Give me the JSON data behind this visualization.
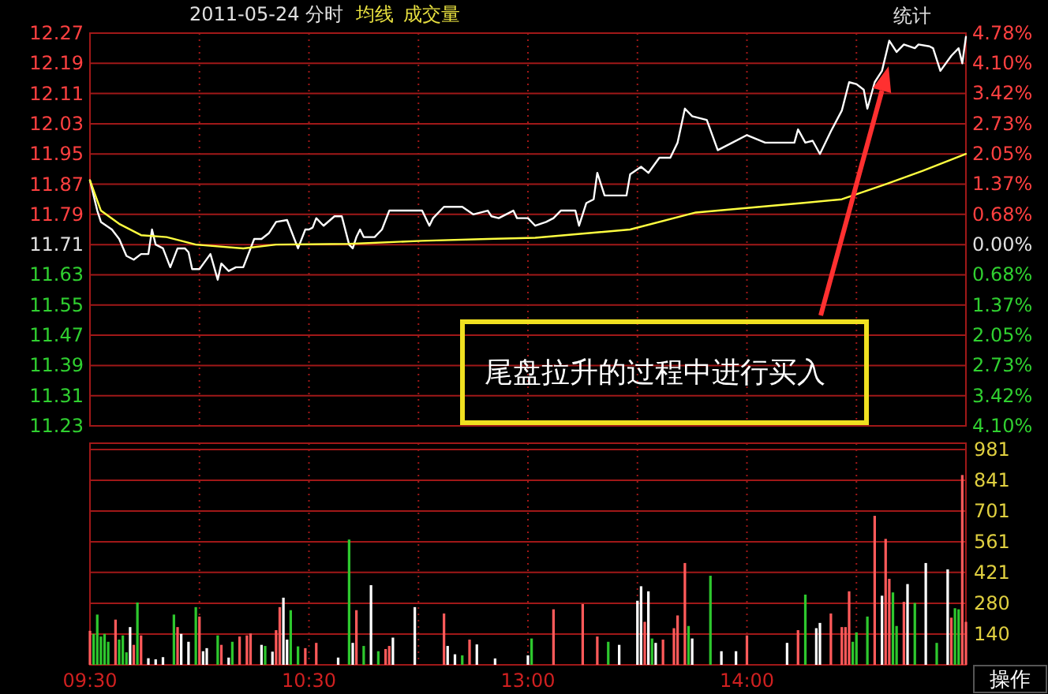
{
  "chart_data": [
    {
      "type": "line",
      "title": "2011-05-24 分时",
      "legend": "top left",
      "categories": [
        null,
        null,
        null,
        null,
        null,
        null,
        null,
        null,
        null,
        null,
        null,
        null,
        null,
        null,
        null,
        null,
        null,
        null,
        null,
        null,
        null,
        null,
        null,
        null,
        null,
        null,
        null,
        null,
        null,
        null,
        null,
        null,
        null,
        null,
        null,
        null,
        null,
        null,
        null,
        null,
        null,
        null,
        null,
        null,
        null,
        null,
        null,
        null,
        null,
        null,
        null,
        null,
        null,
        null,
        null,
        null,
        null,
        null,
        null,
        null,
        null,
        null,
        null,
        null,
        null,
        null,
        null,
        null,
        null,
        null,
        null,
        null,
        null,
        null,
        null,
        null,
        null,
        null,
        null,
        null,
        null,
        null,
        null,
        null,
        null,
        null,
        null,
        null,
        null,
        null,
        null,
        null,
        null,
        null,
        null,
        null,
        null,
        null,
        null,
        null,
        null,
        null,
        null,
        null,
        null,
        null,
        null,
        null,
        null,
        null,
        null,
        null,
        null,
        null,
        null,
        null,
        null,
        null,
        null,
        null,
        null,
        null,
        null,
        null,
        null,
        null,
        null,
        null,
        null,
        null,
        null,
        null,
        null,
        null,
        null,
        null,
        null,
        null,
        null,
        null,
        null,
        null,
        null,
        null,
        null,
        null,
        null,
        null,
        null,
        null,
        null,
        null,
        null,
        null,
        null,
        null,
        null,
        null,
        null,
        null,
        null,
        null,
        null,
        null,
        null,
        null,
        null,
        null,
        null,
        null,
        null,
        null,
        null,
        null,
        null,
        null,
        null,
        null,
        null,
        null,
        null,
        null,
        null,
        null,
        null,
        null,
        null,
        null,
        null,
        null,
        null,
        null,
        null,
        null,
        null,
        null,
        null,
        null,
        null,
        null,
        null,
        null,
        null,
        null,
        null,
        null,
        null,
        null,
        null,
        null,
        null,
        null,
        null,
        null,
        null,
        null,
        null,
        null,
        null,
        null,
        null,
        null,
        null,
        null,
        null,
        null,
        null,
        null,
        null,
        null,
        null,
        null,
        null,
        null,
        null,
        null,
        null,
        null,
        null,
        null,
        null
      ],
      "ylim": [
        11.23,
        12.27
      ],
      "yticks": [
        12.27,
        12.19,
        12.11,
        12.03,
        11.95,
        11.87,
        11.79,
        11.71,
        11.63,
        11.55,
        11.47,
        11.39,
        11.31,
        11.23
      ],
      "y2lim": [
        -4.1,
        4.78
      ],
      "y2ticks": [
        {
          "value": 4.78,
          "label": "4.78%"
        },
        {
          "value": 4.1,
          "label": "4.10%"
        },
        {
          "value": 3.42,
          "label": "3.42%"
        },
        {
          "value": 2.73,
          "label": "2.73%"
        },
        {
          "value": 2.05,
          "label": "2.05%"
        },
        {
          "value": 1.37,
          "label": "1.37%"
        },
        {
          "value": 0.68,
          "label": "0.68%"
        },
        {
          "value": 0,
          "label": "0.00%"
        },
        {
          "value": -0.68,
          "label": "0.68%"
        },
        {
          "value": -1.37,
          "label": "1.37%"
        },
        {
          "value": -2.05,
          "label": "2.05%"
        },
        {
          "value": -2.73,
          "label": "2.73%"
        },
        {
          "value": -3.42,
          "label": "3.42%"
        },
        {
          "value": -4.1,
          "label": "4.10%"
        }
      ],
      "tick_labels": "y",
      "grid": true,
      "series": [
        {
          "color": "#ffffff",
          "values": [
            11.88,
            null,
            11.8,
            11.77,
            null,
            null,
            11.75,
            null,
            11.725,
            null,
            11.68,
            null,
            11.67,
            null,
            11.685,
            null,
            11.685,
            11.75,
            11.71,
            null,
            11.7,
            null,
            11.65,
            null,
            11.7,
            null,
            11.7,
            11.69,
            11.645,
            null,
            11.645,
            null,
            null,
            11.685,
            null,
            11.617,
            11.66,
            null,
            11.64,
            null,
            11.65,
            null,
            11.65,
            null,
            null,
            11.725,
            null,
            11.725,
            null,
            11.74,
            null,
            11.77,
            null,
            null,
            11.775,
            11.75,
            null,
            11.7,
            null,
            11.75,
            11.75,
            11.755,
            11.78,
            null,
            11.76,
            null,
            null,
            11.785,
            null,
            11.785,
            null,
            11.71,
            11.7,
            11.73,
            11.75,
            11.73,
            null,
            null,
            11.73,
            null,
            11.75,
            null,
            11.8,
            null,
            null,
            null,
            null,
            null,
            null,
            null,
            null,
            11.8,
            null,
            11.76,
            11.78,
            null,
            null,
            11.81,
            null,
            null,
            null,
            null,
            11.81,
            null,
            null,
            11.79,
            null,
            null,
            null,
            11.8,
            11.785,
            null,
            11.78,
            null,
            null,
            null,
            11.8,
            11.78,
            null,
            null,
            11.78,
            null,
            11.76,
            null,
            null,
            11.77,
            null,
            11.78,
            null,
            11.8,
            null,
            null,
            null,
            11.8,
            11.76,
            null,
            11.82,
            null,
            11.83,
            11.9,
            null,
            11.84,
            null,
            null,
            null,
            null,
            null,
            11.84,
            11.896,
            null,
            null,
            11.916,
            null,
            11.9,
            null,
            null,
            11.94,
            null,
            null,
            11.94,
            null,
            11.98,
            null,
            12.07,
            null,
            12.05,
            null,
            null,
            null,
            12.04,
            null,
            null,
            11.96,
            null,
            null,
            null,
            11.98,
            null,
            null,
            null,
            12.0,
            null,
            null,
            null,
            null,
            11.98,
            null,
            null,
            11.98,
            null,
            null,
            null,
            null,
            11.98,
            12.015,
            null,
            11.98,
            null,
            11.985,
            null,
            11.95,
            null,
            null,
            12.01,
            null,
            null,
            12.065,
            null,
            12.14,
            null,
            12.135,
            null,
            12.12,
            12.07,
            null,
            12.14,
            null,
            12.17,
            null,
            12.25,
            null,
            12.22,
            null,
            12.24,
            null,
            null,
            12.23,
            12.24,
            null,
            null,
            12.235,
            12.23,
            null,
            12.17,
            null,
            null,
            12.21,
            null,
            12.23,
            12.19,
            12.26
          ]
        },
        {
          "name": "均线",
          "color": "#ffff40",
          "values": [
            11.88,
            null,
            null,
            11.8,
            null,
            null,
            null,
            null,
            11.765,
            null,
            null,
            null,
            null,
            null,
            11.735,
            null,
            null,
            null,
            null,
            null,
            null,
            11.73,
            null,
            null,
            null,
            null,
            null,
            null,
            null,
            11.71,
            null,
            null,
            null,
            null,
            null,
            null,
            null,
            null,
            null,
            null,
            null,
            null,
            11.7,
            null,
            null,
            null,
            null,
            null,
            null,
            null,
            null,
            11.71,
            null,
            null,
            null,
            null,
            null,
            null,
            null,
            null,
            null,
            null,
            null,
            null,
            null,
            null,
            null,
            null,
            null,
            null,
            null,
            11.712,
            null,
            null,
            null,
            null,
            null,
            null,
            null,
            null,
            null,
            null,
            null,
            null,
            null,
            null,
            null,
            null,
            null,
            null,
            null,
            11.72,
            null,
            null,
            null,
            null,
            null,
            null,
            null,
            null,
            null,
            null,
            null,
            null,
            null,
            null,
            null,
            null,
            null,
            11.725,
            null,
            null,
            null,
            null,
            null,
            null,
            null,
            null,
            null,
            null,
            null,
            null,
            11.728,
            null,
            null,
            null,
            null,
            null,
            null,
            null,
            null,
            null,
            null,
            null,
            null,
            null,
            null,
            null,
            null,
            null,
            null,
            null,
            null,
            null,
            null,
            null,
            null,
            null,
            11.75,
            null,
            null,
            null,
            null,
            null,
            null,
            null,
            null,
            null,
            null,
            null,
            null,
            null,
            null,
            null,
            null,
            null,
            11.795,
            null,
            null,
            null,
            null,
            null,
            null,
            null,
            null,
            null,
            null,
            null,
            null,
            null,
            null,
            null,
            null,
            null,
            null,
            null,
            null,
            null,
            null,
            null,
            null,
            null,
            null,
            null,
            null,
            11.82,
            null,
            null,
            null,
            null,
            null,
            null,
            null,
            null,
            null,
            null,
            11.83,
            null,
            null,
            null,
            null,
            null,
            null,
            null,
            null,
            null,
            null,
            null,
            11.87,
            null,
            null,
            null,
            null,
            null,
            null,
            null,
            null,
            null,
            11.905,
            null,
            null,
            null,
            null,
            null,
            null,
            null,
            null,
            null,
            null,
            null,
            11.95
          ]
        }
      ],
      "annotations": [
        "尾盘拉升的过程中进行买入",
        "统计"
      ]
    },
    {
      "type": "bar",
      "legend": "top left",
      "categories": [
        "09:30",
        null,
        null,
        null,
        null,
        null,
        null,
        null,
        null,
        null,
        null,
        null,
        null,
        null,
        null,
        null,
        null,
        null,
        null,
        null,
        null,
        null,
        null,
        null,
        null,
        null,
        null,
        null,
        null,
        null,
        null,
        null,
        null,
        null,
        null,
        null,
        null,
        null,
        null,
        null,
        null,
        null,
        null,
        null,
        null,
        null,
        null,
        null,
        null,
        null,
        null,
        null,
        null,
        null,
        null,
        null,
        null,
        null,
        null,
        null,
        "10:30",
        null,
        null,
        null,
        null,
        null,
        null,
        null,
        null,
        null,
        null,
        null,
        null,
        null,
        null,
        null,
        null,
        null,
        null,
        null,
        null,
        null,
        null,
        null,
        null,
        null,
        null,
        null,
        null,
        null,
        null,
        null,
        null,
        null,
        null,
        null,
        null,
        null,
        null,
        null,
        null,
        null,
        null,
        null,
        null,
        null,
        null,
        null,
        null,
        null,
        null,
        null,
        null,
        null,
        null,
        null,
        null,
        null,
        null,
        null,
        "13:00",
        null,
        null,
        null,
        null,
        null,
        null,
        null,
        null,
        null,
        null,
        null,
        null,
        null,
        null,
        null,
        null,
        null,
        null,
        null,
        null,
        null,
        null,
        null,
        null,
        null,
        null,
        null,
        null,
        null,
        null,
        null,
        null,
        null,
        null,
        null,
        null,
        null,
        null,
        null,
        null,
        null,
        null,
        null,
        null,
        null,
        null,
        null,
        null,
        null,
        null,
        null,
        null,
        null,
        null,
        null,
        null,
        null,
        null,
        null,
        "14:00",
        null,
        null,
        null,
        null,
        null,
        null,
        null,
        null,
        null,
        null,
        null,
        null,
        null,
        null,
        null,
        null,
        null,
        null,
        null,
        null,
        null,
        null,
        null,
        null,
        null,
        null,
        null,
        null,
        null,
        null,
        null,
        null,
        null,
        null,
        null,
        null,
        null,
        null,
        null,
        null,
        null,
        null,
        null,
        null,
        null,
        null,
        null,
        null,
        null,
        null,
        null,
        null,
        null,
        null,
        null,
        null,
        null,
        null,
        null,
        null
      ],
      "ylim": [
        0,
        1010
      ],
      "yticks": [
        140,
        280,
        421,
        561,
        701,
        841,
        981
      ],
      "grid": true,
      "series": [
        {
          "name": "成交量",
          "values": [
            155,
            141,
            229,
            129,
            141,
            105,
            null,
            206,
            115,
            134,
            57,
            172,
            91,
            284,
            134,
            null,
            30,
            null,
            25,
            null,
            35,
            null,
            null,
            229,
            172,
            141,
            null,
            105,
            null,
            263,
            220,
            62,
            76,
            null,
            null,
            134,
            91,
            null,
            33,
            105,
            null,
            129,
            null,
            134,
            143,
            null,
            null,
            91,
            86,
            null,
            60,
            158,
            263,
            306,
            115,
            249,
            null,
            84,
            null,
            76,
            null,
            null,
            100,
            null,
            null,
            null,
            null,
            null,
            33,
            null,
            null,
            571,
            100,
            249,
            null,
            86,
            null,
            363,
            null,
            62,
            null,
            72,
            86,
            124,
            null,
            null,
            null,
            null,
            null,
            263,
            null,
            null,
            null,
            null,
            null,
            null,
            null,
            234,
            86,
            null,
            48,
            null,
            43,
            null,
            115,
            null,
            93,
            null,
            null,
            null,
            null,
            29,
            null,
            null,
            null,
            null,
            null,
            null,
            null,
            null,
            43,
            120,
            null,
            null,
            null,
            null,
            null,
            253,
            null,
            null,
            null,
            null,
            null,
            null,
            null,
            277,
            null,
            null,
            null,
            129,
            null,
            null,
            105,
            null,
            null,
            91,
            null,
            null,
            null,
            null,
            292,
            358,
            196,
            335,
            120,
            100,
            null,
            115,
            null,
            null,
            167,
            225,
            null,
            464,
            177,
            120,
            null,
            null,
            null,
            null,
            406,
            null,
            null,
            62,
            null,
            null,
            null,
            62,
            null,
            null,
            134,
            null,
            null,
            null,
            null,
            null,
            null,
            null,
            null,
            null,
            null,
            100,
            null,
            null,
            158,
            null,
            320,
            null,
            null,
            167,
            191,
            null,
            null,
            234,
            null,
            null,
            172,
            172,
            335,
            105,
            148,
            null,
            null,
            220,
            null,
            679,
            null,
            315,
            574,
            392,
            330,
            177,
            null,
            287,
            368,
            null,
            282,
            null,
            null,
            464,
            null,
            null,
            100,
            null,
            null,
            435,
            215,
            258,
            253,
            865,
            196
          ],
          "colors": [
            "#ff5a5a",
            "#2ec82e",
            "#2ec82e",
            "#2ec82e",
            "#2ec82e",
            "#2ec82e",
            null,
            "#ff5a5a",
            "#2ec82e",
            "#2ec82e",
            "#2ec82e",
            "#ffffff",
            "#ff5a5a",
            "#2ec82e",
            "#ff5a5a",
            null,
            "#ffffff",
            null,
            "#ffffff",
            null,
            "#ffffff",
            null,
            null,
            "#2ec82e",
            "#ff5a5a",
            "#ffffff",
            null,
            "#ffffff",
            null,
            "#2ec82e",
            "#ff5a5a",
            "#ffffff",
            "#ffffff",
            null,
            null,
            "#2ec82e",
            "#ff5a5a",
            null,
            "#ffffff",
            "#2ec82e",
            null,
            "#ff5a5a",
            null,
            "#ff5a5a",
            "#ff5a5a",
            null,
            null,
            "#ffffff",
            "#2ec82e",
            null,
            "#ffffff",
            "#ff5a5a",
            "#ff5a5a",
            "#ffffff",
            "#ffffff",
            "#2ec82e",
            null,
            "#2ec82e",
            null,
            "#ff5a5a",
            null,
            null,
            "#ff5a5a",
            null,
            null,
            null,
            null,
            null,
            "#ffffff",
            null,
            null,
            "#2ec82e",
            "#ffffff",
            "#ff5a5a",
            null,
            "#2ec82e",
            null,
            "#ffffff",
            null,
            "#2ec82e",
            null,
            "#ff5a5a",
            "#ff5a5a",
            "#ffffff",
            null,
            null,
            null,
            null,
            null,
            "#ffffff",
            null,
            null,
            null,
            null,
            null,
            null,
            null,
            "#ff5a5a",
            "#ffffff",
            null,
            "#ffffff",
            null,
            "#2ec82e",
            null,
            "#ff5a5a",
            null,
            "#ffffff",
            null,
            null,
            null,
            null,
            "#ffffff",
            null,
            null,
            null,
            null,
            null,
            null,
            null,
            null,
            "#ffffff",
            "#2ec82e",
            null,
            null,
            null,
            null,
            null,
            "#ff5a5a",
            null,
            null,
            null,
            null,
            null,
            null,
            null,
            "#ff5a5a",
            null,
            null,
            null,
            "#ff5a5a",
            null,
            null,
            "#2ec82e",
            null,
            null,
            "#ffffff",
            null,
            null,
            null,
            null,
            "#ffffff",
            "#ffffff",
            "#ff5a5a",
            "#ffffff",
            "#2ec82e",
            "#ffffff",
            null,
            "#ff5a5a",
            null,
            null,
            "#ff5a5a",
            "#ff5a5a",
            null,
            "#ff5a5a",
            "#2ec82e",
            "#ffffff",
            null,
            null,
            null,
            null,
            "#2ec82e",
            null,
            null,
            "#ffffff",
            null,
            null,
            null,
            "#ffffff",
            null,
            null,
            "#ff5a5a",
            null,
            null,
            null,
            null,
            null,
            null,
            null,
            null,
            null,
            null,
            "#ffffff",
            null,
            null,
            "#ff5a5a",
            null,
            "#2ec82e",
            null,
            null,
            "#ffffff",
            "#ffffff",
            null,
            null,
            "#ff5a5a",
            null,
            null,
            "#ff5a5a",
            "#ff5a5a",
            "#ff5a5a",
            "#2ec82e",
            "#2ec82e",
            null,
            null,
            "#2ec82e",
            null,
            "#ff5a5a",
            null,
            "#ffffff",
            "#ff5a5a",
            "#ff5a5a",
            "#2ec82e",
            "#2ec82e",
            null,
            "#ff5a5a",
            "#ffffff",
            null,
            "#2ec82e",
            null,
            null,
            "#ffffff",
            null,
            null,
            "#2ec82e",
            null,
            null,
            "#ffffff",
            "#ff5a5a",
            "#2ec82e",
            "#2ec82e",
            "#ff5a5a",
            "#ff5a5a"
          ]
        }
      ],
      "annotations": [
        "操作"
      ]
    }
  ]
}
